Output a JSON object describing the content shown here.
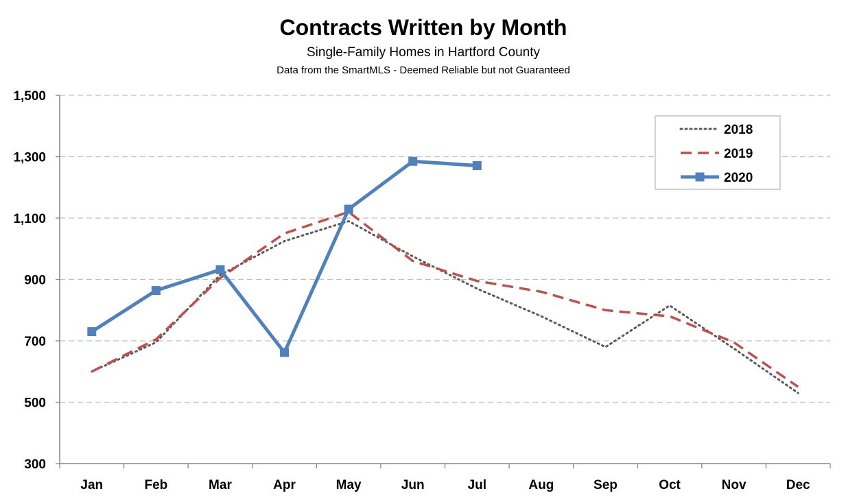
{
  "chart_data": {
    "type": "line",
    "title": "Contracts Written by Month",
    "subtitle": "Single-Family Homes in Hartford County",
    "note": "Data from the SmartMLS - Deemed Reliable but not Guaranteed",
    "xlabel": "",
    "ylabel": "",
    "categories": [
      "Jan",
      "Feb",
      "Mar",
      "Apr",
      "May",
      "Jun",
      "Jul",
      "Aug",
      "Sep",
      "Oct",
      "Nov",
      "Dec"
    ],
    "ylim": [
      300,
      1500
    ],
    "yticks": [
      300,
      500,
      700,
      900,
      1100,
      1300,
      1500
    ],
    "ytick_labels": [
      "300",
      "500",
      "700",
      "900",
      "1,100",
      "1,300",
      "1,500"
    ],
    "grid": true,
    "legend_position": "top-right",
    "series": [
      {
        "name": "2018",
        "style": "dotted",
        "color": "#595959",
        "marker": "none",
        "values": [
          600,
          695,
          915,
          1025,
          1090,
          975,
          870,
          780,
          680,
          815,
          675,
          530
        ]
      },
      {
        "name": "2019",
        "style": "dashed",
        "color": "#c0504d",
        "marker": "none",
        "values": [
          600,
          705,
          905,
          1050,
          1120,
          960,
          895,
          860,
          800,
          780,
          695,
          550
        ]
      },
      {
        "name": "2020",
        "style": "solid",
        "color": "#4f81bd",
        "marker": "square",
        "values": [
          730,
          864,
          932,
          662,
          1129,
          1285,
          1271,
          null,
          null,
          null,
          null,
          null
        ]
      }
    ]
  }
}
